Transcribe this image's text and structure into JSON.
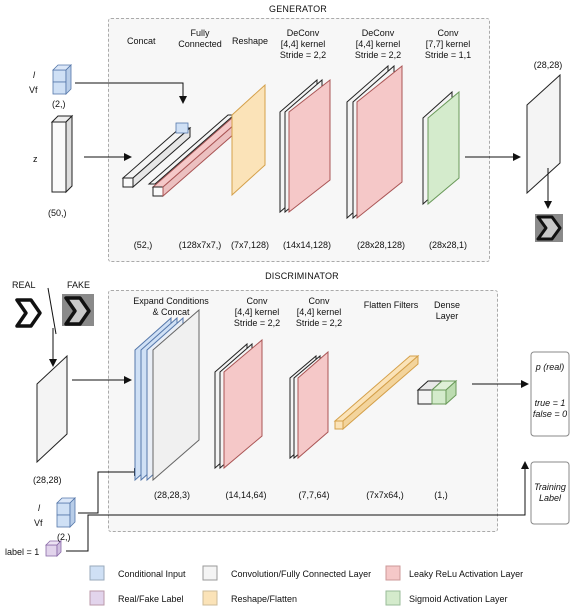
{
  "generator": {
    "title": "GENERATOR",
    "input_l": "l",
    "input_vf": "Vf",
    "input_l_shape": "(2,)",
    "input_z": "z",
    "input_z_shape": "(50,)",
    "layers": [
      {
        "name": "Concat",
        "shape": "(52,)"
      },
      {
        "name": "Fully Connected",
        "shape": "(128x7x7,)"
      },
      {
        "name": "Reshape",
        "shape": "(7x7,128)"
      },
      {
        "name": "DeConv [4,4] kernel Stride = 2,2",
        "shape": "(14x14,128)"
      },
      {
        "name": "DeConv [4,4] kernel Stride = 2,2",
        "shape": "(28x28,128)"
      },
      {
        "name": "Conv [7,7] kernel Stride = 1,1",
        "shape": "(28x28,1)"
      }
    ],
    "output_shape": "(28,28)",
    "labels": {
      "concat": "Concat",
      "fc1": "Fully",
      "fc2": "Connected",
      "reshape": "Reshape",
      "deconv1_a": "DeConv",
      "deconv1_b": "[4,4] kernel",
      "deconv1_c": "Stride = 2,2",
      "deconv2_a": "DeConv",
      "deconv2_b": "[4,4] kernel",
      "deconv2_c": "Stride = 2,2",
      "conv_a": "Conv",
      "conv_b": "[7,7] kernel",
      "conv_c": "Stride = 1,1"
    }
  },
  "discriminator": {
    "title": "DISCRIMINATOR",
    "real": "REAL",
    "fake": "FAKE",
    "image_shape": "(28,28)",
    "input_l": "l",
    "input_vf": "Vf",
    "input_l_shape": "(2,)",
    "label_text": "label = 1",
    "labels": {
      "expand_a": "Expand Conditions",
      "expand_b": "& Concat",
      "conv1_a": "Conv",
      "conv1_b": "[4,4] kernel",
      "conv1_c": "Stride = 2,2",
      "conv2_a": "Conv",
      "conv2_b": "[4,4] kernel",
      "conv2_c": "Stride = 2,2",
      "flatten": "Flatten Filters",
      "dense_a": "Dense",
      "dense_b": "Layer"
    },
    "shapes": [
      "(28,28,3)",
      "(14,14,64)",
      "(7,7,64)",
      "(7x7x64,)",
      "(1,)"
    ],
    "output": {
      "title": "p (real)",
      "true_line": "true = 1",
      "false_line": "false = 0"
    },
    "training_label_a": "Training",
    "training_label_b": "Label"
  },
  "legend": [
    {
      "label": "Conditional Input",
      "color": "#cfe0f5"
    },
    {
      "label": "Convolution/Fully Connected Layer",
      "color": "#f4f4f4"
    },
    {
      "label": "Leaky ReLu Activation Layer",
      "color": "#f5c8c8"
    },
    {
      "label": "Real/Fake Label",
      "color": "#e2d4ec"
    },
    {
      "label": "Reshape/Flatten",
      "color": "#fbe3b8"
    },
    {
      "label": "Sigmoid Activation Layer",
      "color": "#d4ebcc"
    }
  ],
  "colors": {
    "blue": "#cfe0f5",
    "white": "#f4f4f4",
    "red": "#f5c8c8",
    "purple": "#e2d4ec",
    "orange": "#fbe3b8",
    "green": "#d4ebcc"
  }
}
